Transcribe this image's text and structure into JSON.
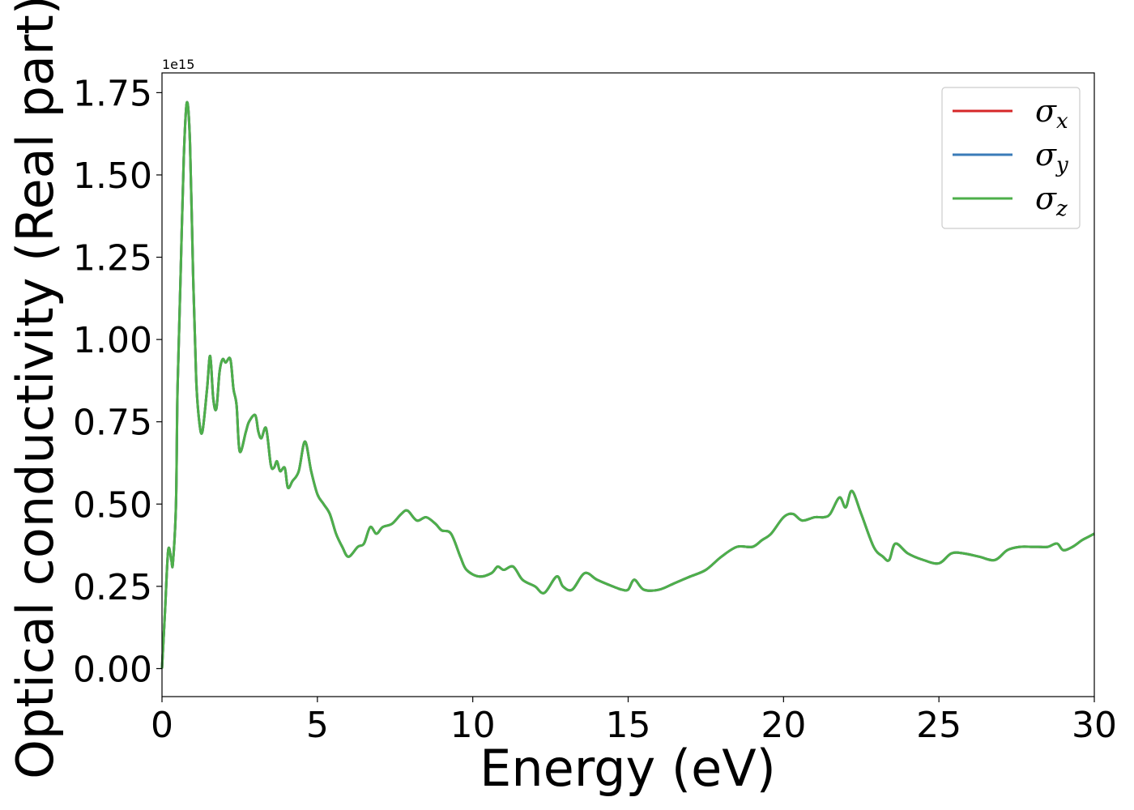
{
  "chart_data": {
    "type": "line",
    "title": "",
    "xlabel": "Energy (eV)",
    "ylabel": "Optical conductivity (Real part)",
    "y_offset_text": "1e15",
    "xlim": [
      0,
      30
    ],
    "ylim": [
      -0.085,
      1.81
    ],
    "xticks": [
      0,
      5,
      10,
      15,
      20,
      25,
      30
    ],
    "xtick_labels": [
      "0",
      "5",
      "10",
      "15",
      "20",
      "25",
      "30"
    ],
    "yticks": [
      0,
      0.25,
      0.5,
      0.75,
      1.0,
      1.25,
      1.5,
      1.75
    ],
    "ytick_labels": [
      "0.00",
      "0.25",
      "0.50",
      "0.75",
      "1.00",
      "1.25",
      "1.50",
      "1.75"
    ],
    "grid": false,
    "legend_position": "top-right",
    "x": [
      0,
      0.1,
      0.2,
      0.3,
      0.35,
      0.45,
      0.5,
      0.6,
      0.7,
      0.8,
      0.9,
      1.0,
      1.1,
      1.2,
      1.3,
      1.45,
      1.55,
      1.65,
      1.75,
      1.85,
      1.95,
      2.05,
      2.2,
      2.3,
      2.4,
      2.5,
      2.7,
      2.8,
      3.0,
      3.1,
      3.2,
      3.35,
      3.5,
      3.6,
      3.7,
      3.8,
      3.95,
      4.05,
      4.2,
      4.4,
      4.6,
      4.8,
      5.0,
      5.2,
      5.4,
      5.6,
      5.8,
      6.0,
      6.3,
      6.5,
      6.7,
      6.9,
      7.1,
      7.4,
      7.7,
      7.9,
      8.2,
      8.5,
      8.8,
      9.0,
      9.3,
      9.6,
      9.8,
      10.2,
      10.6,
      10.8,
      11.0,
      11.3,
      11.6,
      12.0,
      12.3,
      12.7,
      12.9,
      13.2,
      13.6,
      14.0,
      14.5,
      14.8,
      15.0,
      15.2,
      15.5,
      16.0,
      16.5,
      17.0,
      17.5,
      18.0,
      18.5,
      19.0,
      19.3,
      19.6,
      20.0,
      20.3,
      20.6,
      21.0,
      21.3,
      21.5,
      21.8,
      22.0,
      22.2,
      22.5,
      22.9,
      23.2,
      23.4,
      23.6,
      24.0,
      24.5,
      25.0,
      25.4,
      25.8,
      26.3,
      26.8,
      27.2,
      27.6,
      28.0,
      28.2,
      28.5,
      28.8,
      29.0,
      29.3,
      29.6,
      29.8,
      30.0
    ],
    "series": [
      {
        "name": "σx",
        "color": "#d62728",
        "values": [
          0.0,
          0.18,
          0.36,
          0.33,
          0.32,
          0.5,
          0.85,
          1.2,
          1.55,
          1.72,
          1.6,
          1.2,
          0.88,
          0.75,
          0.72,
          0.85,
          0.95,
          0.82,
          0.79,
          0.9,
          0.94,
          0.93,
          0.94,
          0.85,
          0.8,
          0.66,
          0.72,
          0.75,
          0.77,
          0.72,
          0.7,
          0.73,
          0.62,
          0.61,
          0.63,
          0.6,
          0.61,
          0.55,
          0.57,
          0.6,
          0.69,
          0.6,
          0.53,
          0.5,
          0.47,
          0.41,
          0.37,
          0.34,
          0.37,
          0.38,
          0.43,
          0.41,
          0.43,
          0.44,
          0.47,
          0.48,
          0.45,
          0.46,
          0.44,
          0.42,
          0.41,
          0.34,
          0.3,
          0.28,
          0.29,
          0.31,
          0.3,
          0.31,
          0.27,
          0.25,
          0.23,
          0.28,
          0.25,
          0.24,
          0.29,
          0.27,
          0.25,
          0.24,
          0.24,
          0.27,
          0.24,
          0.24,
          0.26,
          0.28,
          0.3,
          0.34,
          0.37,
          0.37,
          0.39,
          0.41,
          0.46,
          0.47,
          0.45,
          0.46,
          0.46,
          0.47,
          0.52,
          0.49,
          0.54,
          0.47,
          0.37,
          0.34,
          0.33,
          0.38,
          0.35,
          0.33,
          0.32,
          0.35,
          0.35,
          0.34,
          0.33,
          0.36,
          0.37,
          0.37,
          0.37,
          0.37,
          0.38,
          0.36,
          0.37,
          0.39,
          0.4,
          0.41
        ]
      },
      {
        "name": "σy",
        "color": "#3a7bb8",
        "values": [
          0.0,
          0.18,
          0.36,
          0.33,
          0.32,
          0.5,
          0.85,
          1.2,
          1.55,
          1.72,
          1.6,
          1.2,
          0.88,
          0.75,
          0.72,
          0.85,
          0.95,
          0.82,
          0.79,
          0.9,
          0.94,
          0.93,
          0.94,
          0.85,
          0.8,
          0.66,
          0.72,
          0.75,
          0.77,
          0.72,
          0.7,
          0.73,
          0.62,
          0.61,
          0.63,
          0.6,
          0.61,
          0.55,
          0.57,
          0.6,
          0.69,
          0.6,
          0.53,
          0.5,
          0.47,
          0.41,
          0.37,
          0.34,
          0.37,
          0.38,
          0.43,
          0.41,
          0.43,
          0.44,
          0.47,
          0.48,
          0.45,
          0.46,
          0.44,
          0.42,
          0.41,
          0.34,
          0.3,
          0.28,
          0.29,
          0.31,
          0.3,
          0.31,
          0.27,
          0.25,
          0.23,
          0.28,
          0.25,
          0.24,
          0.29,
          0.27,
          0.25,
          0.24,
          0.24,
          0.27,
          0.24,
          0.24,
          0.26,
          0.28,
          0.3,
          0.34,
          0.37,
          0.37,
          0.39,
          0.41,
          0.46,
          0.47,
          0.45,
          0.46,
          0.46,
          0.47,
          0.52,
          0.49,
          0.54,
          0.47,
          0.37,
          0.34,
          0.33,
          0.38,
          0.35,
          0.33,
          0.32,
          0.35,
          0.35,
          0.34,
          0.33,
          0.36,
          0.37,
          0.37,
          0.37,
          0.37,
          0.38,
          0.36,
          0.37,
          0.39,
          0.4,
          0.41
        ]
      },
      {
        "name": "σz",
        "color": "#4daf4a",
        "values": [
          0.0,
          0.18,
          0.36,
          0.33,
          0.32,
          0.5,
          0.85,
          1.2,
          1.55,
          1.72,
          1.6,
          1.2,
          0.88,
          0.75,
          0.72,
          0.85,
          0.95,
          0.82,
          0.79,
          0.9,
          0.94,
          0.93,
          0.94,
          0.85,
          0.8,
          0.66,
          0.72,
          0.75,
          0.77,
          0.72,
          0.7,
          0.73,
          0.62,
          0.61,
          0.63,
          0.6,
          0.61,
          0.55,
          0.57,
          0.6,
          0.69,
          0.6,
          0.53,
          0.5,
          0.47,
          0.41,
          0.37,
          0.34,
          0.37,
          0.38,
          0.43,
          0.41,
          0.43,
          0.44,
          0.47,
          0.48,
          0.45,
          0.46,
          0.44,
          0.42,
          0.41,
          0.34,
          0.3,
          0.28,
          0.29,
          0.31,
          0.3,
          0.31,
          0.27,
          0.25,
          0.23,
          0.28,
          0.25,
          0.24,
          0.29,
          0.27,
          0.25,
          0.24,
          0.24,
          0.27,
          0.24,
          0.24,
          0.26,
          0.28,
          0.3,
          0.34,
          0.37,
          0.37,
          0.39,
          0.41,
          0.46,
          0.47,
          0.45,
          0.46,
          0.46,
          0.47,
          0.52,
          0.49,
          0.54,
          0.47,
          0.37,
          0.34,
          0.33,
          0.38,
          0.35,
          0.33,
          0.32,
          0.35,
          0.35,
          0.34,
          0.33,
          0.36,
          0.37,
          0.37,
          0.37,
          0.37,
          0.38,
          0.36,
          0.37,
          0.39,
          0.4,
          0.41
        ]
      }
    ],
    "legend": [
      {
        "symbol": "σ",
        "sub": "x",
        "color": "#d62728"
      },
      {
        "symbol": "σ",
        "sub": "y",
        "color": "#3a7bb8"
      },
      {
        "symbol": "σ",
        "sub": "z",
        "color": "#4daf4a"
      }
    ]
  }
}
